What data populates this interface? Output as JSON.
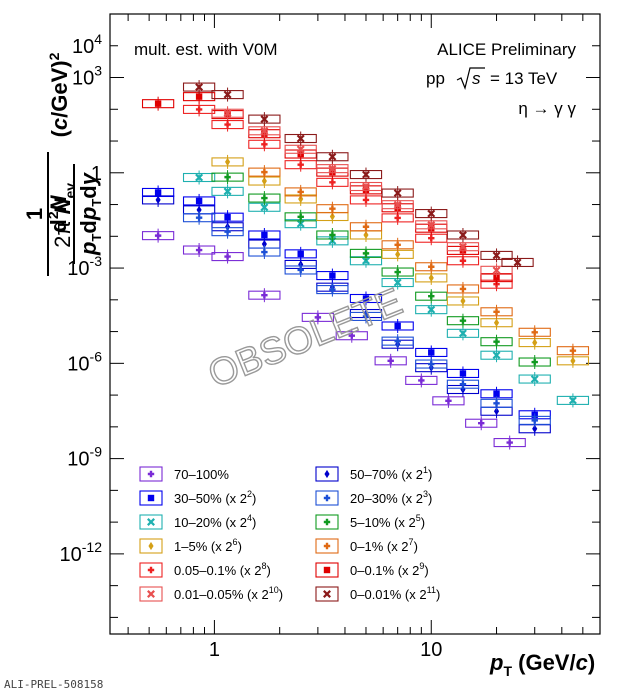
{
  "chart_data": {
    "type": "scatter",
    "xscale": "log",
    "yscale": "log",
    "xlim": [
      0.33,
      60
    ],
    "ylim": [
      3e-15,
      100000
    ],
    "xlabel": "p_T (GeV/c)",
    "ylabel": "1/(2π N_ev.) d²N/(p_T dp_T dy) (c/GeV)²",
    "xticks": [
      1,
      10
    ],
    "yticks": [
      {
        "v": 10000,
        "b": "10",
        "e": "4"
      },
      {
        "v": 1000,
        "b": "10",
        "e": "3"
      },
      {
        "v": 1,
        "b": "1",
        "e": ""
      },
      {
        "v": 0.001,
        "b": "10",
        "e": "-3"
      },
      {
        "v": 1e-06,
        "b": "10",
        "e": "-6"
      },
      {
        "v": 1e-09,
        "b": "10",
        "e": "-9"
      },
      {
        "v": 1e-12,
        "b": "10",
        "e": "-12"
      }
    ],
    "annotations": {
      "left": "mult. est. with V0M",
      "experiment": "ALICE Preliminary",
      "system_pre": "pp",
      "system_post": "= 13 TeV",
      "sqrt_s": "s",
      "decay": "η → γ γ",
      "watermark": "OBSOLETE",
      "prelim_id": "ALI-PREL-508158"
    },
    "series": [
      {
        "name": "70–100%",
        "label": "70–100%",
        "sup": "",
        "color": "#7a2bd6",
        "marker": "plus",
        "points": [
          [
            0.55,
            0.0105
          ],
          [
            0.85,
            0.0037
          ],
          [
            1.15,
            0.0023
          ],
          [
            1.7,
            0.00014
          ],
          [
            3.0,
            2.8e-05
          ],
          [
            4.3,
            7.4e-06
          ],
          [
            6.5,
            1.2e-06
          ],
          [
            9.0,
            2.9e-07
          ],
          [
            12,
            6.6e-08
          ],
          [
            17,
            1.3e-08
          ],
          [
            23,
            3.2e-09
          ]
        ]
      },
      {
        "name": "50–70%",
        "label": "50–70% (x 2",
        "sup": "1",
        "color": "#0000cc",
        "marker": "diamond",
        "points": [
          [
            0.55,
            0.14
          ],
          [
            0.85,
            0.068
          ],
          [
            1.15,
            0.02
          ],
          [
            1.7,
            0.0057
          ],
          [
            2.5,
            0.0013
          ],
          [
            3.5,
            0.00025
          ],
          [
            5.0,
            3.7e-05
          ],
          [
            7.0,
            4e-06
          ],
          [
            10,
            7.3e-07
          ],
          [
            14,
            1.5e-07
          ],
          [
            20,
            3.1e-08
          ],
          [
            30,
            8.7e-09
          ]
        ]
      },
      {
        "name": "30–50%",
        "label": "30–50% (x 2",
        "sup": "2",
        "color": "#0000ee",
        "marker": "square",
        "points": [
          [
            0.55,
            0.24
          ],
          [
            0.85,
            0.13
          ],
          [
            1.15,
            0.04
          ],
          [
            1.7,
            0.011
          ],
          [
            2.5,
            0.0028
          ],
          [
            3.5,
            0.00058
          ],
          [
            5.0,
            0.00011
          ],
          [
            7.0,
            1.5e-05
          ],
          [
            10,
            2.2e-06
          ],
          [
            14,
            4.8e-07
          ],
          [
            20,
            1.1e-07
          ],
          [
            30,
            2.4e-08
          ]
        ]
      },
      {
        "name": "20–30%",
        "label": "20–30% (x 2",
        "sup": "3",
        "color": "#1c4fd6",
        "marker": "plus",
        "points": [
          [
            0.85,
            0.0385
          ],
          [
            1.15,
            0.014
          ],
          [
            1.7,
            0.0032
          ],
          [
            2.5,
            0.00087
          ],
          [
            3.5,
            0.00021
          ],
          [
            5.0,
            3e-05
          ],
          [
            7.0,
            5e-06
          ],
          [
            10,
            9.5e-07
          ],
          [
            14,
            2.2e-07
          ],
          [
            20,
            5.5e-08
          ],
          [
            30,
            1.6e-08
          ]
        ]
      },
      {
        "name": "10–20%",
        "label": "10–20% (x 2",
        "sup": "4",
        "color": "#1fb0b0",
        "marker": "cross",
        "points": [
          [
            0.85,
            0.71
          ],
          [
            1.15,
            0.26
          ],
          [
            1.7,
            0.082
          ],
          [
            2.5,
            0.025
          ],
          [
            3.5,
            0.0072
          ],
          [
            5.0,
            0.0017
          ],
          [
            7.0,
            0.00035
          ],
          [
            10,
            4.9e-05
          ],
          [
            14,
            8.8e-06
          ],
          [
            20,
            1.8e-06
          ],
          [
            30,
            3.2e-07
          ],
          [
            45,
            6.8e-08
          ]
        ]
      },
      {
        "name": "5–10%",
        "label": "5–10% (x 2",
        "sup": "5",
        "color": "#109a20",
        "marker": "plus",
        "points": [
          [
            1.15,
            0.73
          ],
          [
            1.7,
            0.16
          ],
          [
            2.5,
            0.041
          ],
          [
            3.5,
            0.011
          ],
          [
            5.0,
            0.0029
          ],
          [
            7.0,
            0.00075
          ],
          [
            10,
            0.00013
          ],
          [
            14,
            2.2e-05
          ],
          [
            20,
            4.8e-06
          ],
          [
            30,
            1.1e-06
          ]
        ]
      },
      {
        "name": "1–5%",
        "label": "1–5% (x 2",
        "sup": "6",
        "color": "#d4a017",
        "marker": "diamond",
        "points": [
          [
            1.15,
            2.2
          ],
          [
            1.7,
            0.55
          ],
          [
            2.5,
            0.15
          ],
          [
            3.5,
            0.042
          ],
          [
            5.0,
            0.011
          ],
          [
            7.0,
            0.0027
          ],
          [
            10,
            0.00049
          ],
          [
            14,
            9.2e-05
          ],
          [
            20,
            1.9e-05
          ],
          [
            30,
            4.5e-06
          ],
          [
            45,
            1.2e-06
          ]
        ]
      },
      {
        "name": "0–1%",
        "label": "0–1% (x 2",
        "sup": "7",
        "color": "#e06a14",
        "marker": "plus",
        "points": [
          [
            1.7,
            1.05
          ],
          [
            2.5,
            0.25
          ],
          [
            3.5,
            0.074
          ],
          [
            5.0,
            0.02
          ],
          [
            7.0,
            0.0054
          ],
          [
            10,
            0.0011
          ],
          [
            14,
            0.00022
          ],
          [
            20,
            4.2e-05
          ],
          [
            30,
            9.5e-06
          ],
          [
            45,
            2.5e-06
          ]
        ]
      },
      {
        "name": "0.05–0.1%",
        "label": "0.05–0.1% (x 2",
        "sup": "8",
        "color": "#ee2222",
        "marker": "plus",
        "points": [
          [
            0.85,
            99
          ],
          [
            1.15,
            33
          ],
          [
            1.7,
            7.9
          ],
          [
            2.5,
            1.8
          ],
          [
            3.5,
            0.5
          ],
          [
            5.0,
            0.14
          ],
          [
            7.0,
            0.038
          ],
          [
            10,
            0.0087
          ],
          [
            14,
            0.0017
          ],
          [
            20,
            0.00031
          ]
        ]
      },
      {
        "name": "0–0.1%",
        "label": "0–0.1% (x 2",
        "sup": "9",
        "color": "#e00000",
        "marker": "square",
        "points": [
          [
            0.55,
            150
          ],
          [
            0.85,
            250
          ],
          [
            1.15,
            68
          ],
          [
            1.7,
            17
          ],
          [
            2.5,
            3.9
          ],
          [
            3.5,
            1.05
          ],
          [
            5.0,
            0.29
          ],
          [
            7.0,
            0.079
          ],
          [
            10,
            0.018
          ],
          [
            14,
            0.0036
          ],
          [
            20,
            0.0005
          ]
        ]
      },
      {
        "name": "0.01–0.05%",
        "label": "0.01–0.05% (x 2",
        "sup": "10",
        "color": "#e85050",
        "marker": "cross",
        "points": [
          [
            1.15,
            75
          ],
          [
            1.7,
            21
          ],
          [
            2.5,
            5.5
          ],
          [
            3.5,
            1.35
          ],
          [
            5.0,
            0.37
          ],
          [
            7.0,
            0.099
          ],
          [
            10,
            0.023
          ],
          [
            14,
            0.0047
          ],
          [
            20,
            0.00085
          ]
        ]
      },
      {
        "name": "0–0.01%",
        "label": "0–0.01% (x 2",
        "sup": "11",
        "color": "#8b1a1a",
        "marker": "cross",
        "points": [
          [
            0.85,
            500
          ],
          [
            1.15,
            290
          ],
          [
            1.7,
            49
          ],
          [
            2.5,
            12
          ],
          [
            3.5,
            3.2
          ],
          [
            5.0,
            0.88
          ],
          [
            7.0,
            0.23
          ],
          [
            10,
            0.052
          ],
          [
            14,
            0.011
          ],
          [
            20,
            0.0025
          ],
          [
            25,
            0.0015
          ]
        ]
      }
    ]
  }
}
